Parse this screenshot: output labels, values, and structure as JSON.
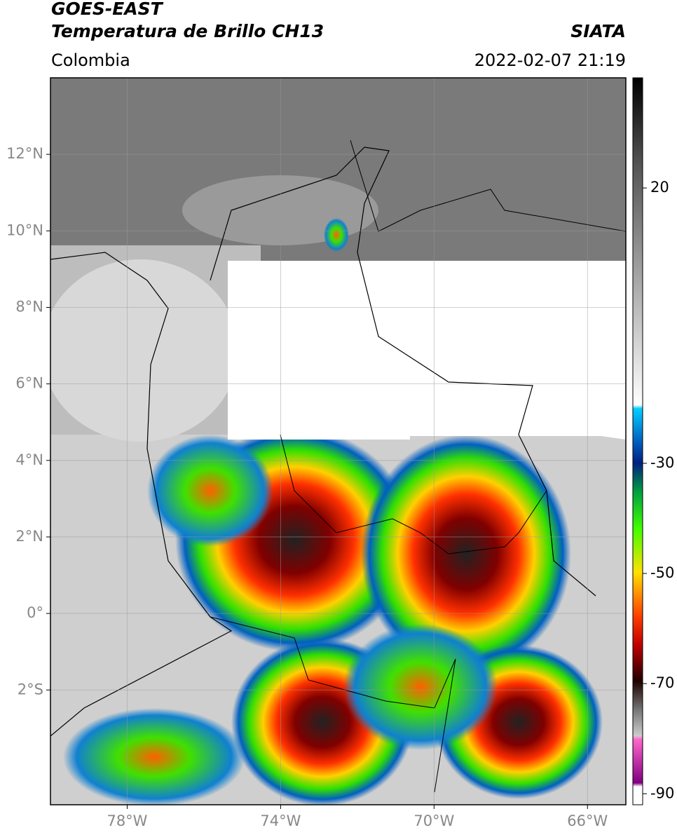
{
  "header": {
    "title": "GOES-EAST",
    "subtitle": "Temperatura de Brillo CH13",
    "region": "Colombia",
    "source": "SIATA",
    "datetime": "2022-02-07 21:19"
  },
  "map": {
    "xlim": [
      -80,
      -65
    ],
    "ylim": [
      -5,
      14
    ],
    "xticks": [
      {
        "value": -78,
        "label": "78°W"
      },
      {
        "value": -74,
        "label": "74°W"
      },
      {
        "value": -70,
        "label": "70°W"
      },
      {
        "value": -66,
        "label": "66°W"
      }
    ],
    "yticks": [
      {
        "value": 12,
        "label": "12°N"
      },
      {
        "value": 10,
        "label": "10°N"
      },
      {
        "value": 8,
        "label": "8°N"
      },
      {
        "value": 6,
        "label": "6°N"
      },
      {
        "value": 4,
        "label": "4°N"
      },
      {
        "value": 2,
        "label": "2°N"
      },
      {
        "value": 0,
        "label": "0°"
      },
      {
        "value": -2,
        "label": "2°S"
      }
    ]
  },
  "colorbar": {
    "lim": [
      -92,
      40
    ],
    "ticks": [
      20,
      -30,
      -50,
      -70,
      -90
    ]
  }
}
